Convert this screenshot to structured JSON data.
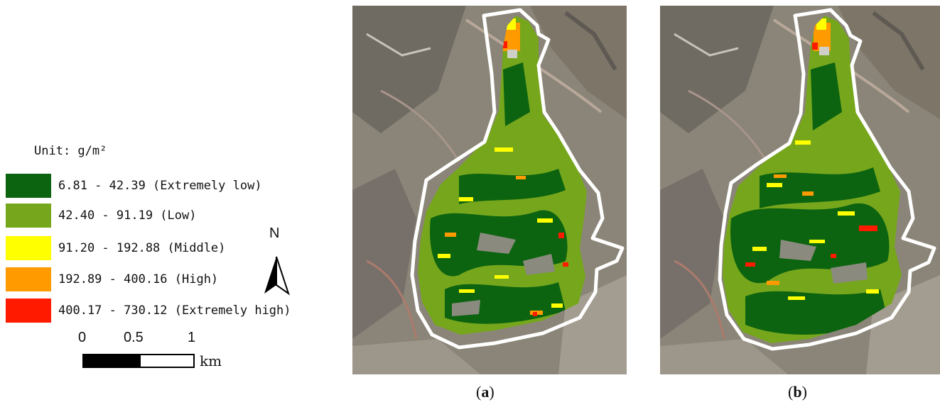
{
  "legend": {
    "unit": "Unit: g/m²",
    "classes": [
      {
        "label": "6.81 - 42.39 (Extremely low)",
        "color": "#0c6410"
      },
      {
        "label": "42.40 - 91.19 (Low)",
        "color": "#76a61c"
      },
      {
        "label": "91.20 - 192.88 (Middle)",
        "color": "#ffff00"
      },
      {
        "label": "192.89 - 400.16 (High)",
        "color": "#ff9a00"
      },
      {
        "label": "400.17 - 730.12 (Extremely high)",
        "color": "#ff1a00"
      }
    ]
  },
  "scale": {
    "ticks": [
      "0",
      "0.5",
      "1"
    ],
    "unit": "km"
  },
  "north_arrow": {
    "letter": "N"
  },
  "panels": [
    {
      "caption_open": "(",
      "caption_letter": "a",
      "caption_close": ")"
    },
    {
      "caption_open": "(",
      "caption_letter": "b",
      "caption_close": ")"
    }
  ]
}
